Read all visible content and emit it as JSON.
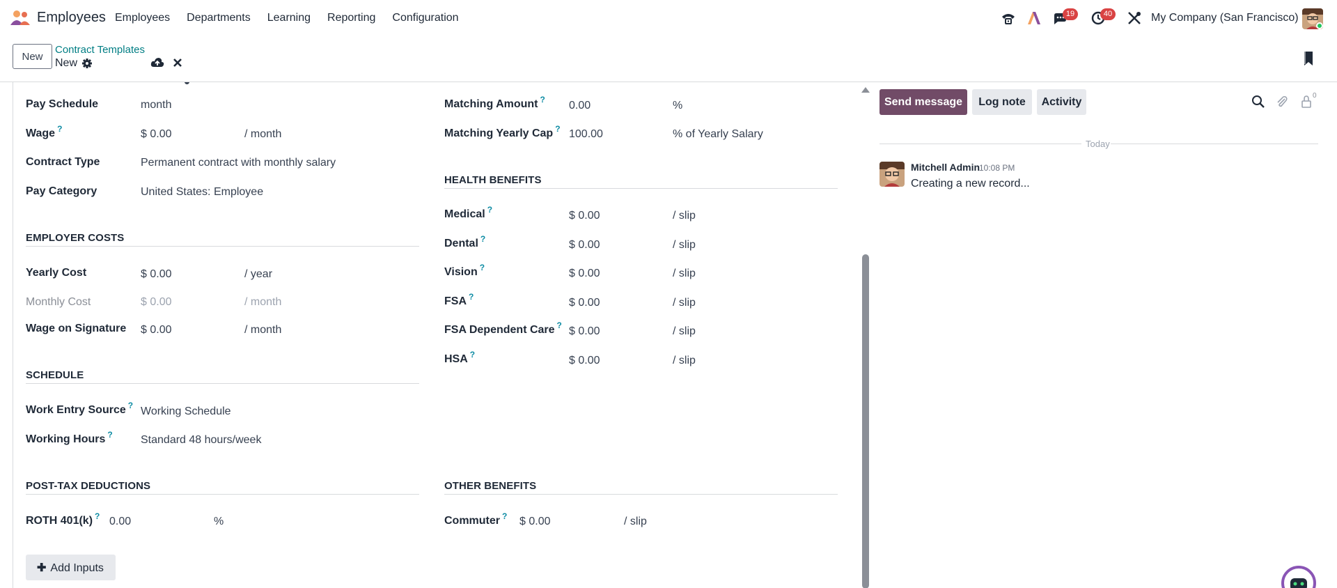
{
  "navbar": {
    "app_name": "Employees",
    "menu": [
      "Employees",
      "Departments",
      "Learning",
      "Reporting",
      "Configuration"
    ],
    "messages_badge": "19",
    "activities_badge": "40",
    "company": "My Company (San Francisco)"
  },
  "control": {
    "new_label": "New",
    "breadcrumb_parent": "Contract Templates",
    "breadcrumb_current": "New"
  },
  "form": {
    "left": {
      "pay_schedule": {
        "label": "Pay Schedule",
        "value": "month"
      },
      "wage": {
        "label": "Wage",
        "value": "$ 0.00",
        "unit": "/ month"
      },
      "contract_type": {
        "label": "Contract Type",
        "value": "Permanent contract with monthly salary"
      },
      "pay_category": {
        "label": "Pay Category",
        "value": "United States: Employee"
      },
      "employer_costs": {
        "title": "EMPLOYER COSTS",
        "yearly_cost": {
          "label": "Yearly Cost",
          "value": "$ 0.00",
          "unit": "/ year"
        },
        "monthly_cost": {
          "label": "Monthly Cost",
          "value": "$ 0.00",
          "unit": "/ month"
        },
        "wage_on_signature": {
          "label": "Wage on Signature",
          "value": "$ 0.00",
          "unit": "/ month"
        }
      },
      "schedule": {
        "title": "SCHEDULE",
        "work_entry_source": {
          "label": "Work Entry Source",
          "value": "Working Schedule"
        },
        "working_hours": {
          "label": "Working Hours",
          "value": "Standard 48 hours/week"
        }
      },
      "post_tax": {
        "title": "POST-TAX DEDUCTIONS",
        "roth": {
          "label": "ROTH 401(k)",
          "value": "0.00",
          "unit": "%"
        }
      },
      "add_inputs_label": "Add Inputs"
    },
    "right": {
      "matching_amount": {
        "label": "Matching Amount",
        "value": "0.00",
        "unit": "%"
      },
      "matching_yearly_cap": {
        "label": "Matching Yearly Cap",
        "value": "100.00",
        "unit": "% of Yearly Salary"
      },
      "health": {
        "title": "HEALTH BENEFITS",
        "rows": [
          {
            "label": "Medical",
            "value": "$ 0.00",
            "unit": "/ slip"
          },
          {
            "label": "Dental",
            "value": "$ 0.00",
            "unit": "/ slip"
          },
          {
            "label": "Vision",
            "value": "$ 0.00",
            "unit": "/ slip"
          },
          {
            "label": "FSA",
            "value": "$ 0.00",
            "unit": "/ slip"
          },
          {
            "label": "FSA Dependent Care",
            "value": "$ 0.00",
            "unit": "/ slip"
          },
          {
            "label": "HSA",
            "value": "$ 0.00",
            "unit": "/ slip"
          }
        ]
      },
      "other": {
        "title": "OTHER BENEFITS",
        "commuter": {
          "label": "Commuter",
          "value": "$ 0.00",
          "unit": "/ slip"
        }
      }
    },
    "help_mark": "?"
  },
  "chatter": {
    "send_message": "Send message",
    "log_note": "Log note",
    "activity": "Activity",
    "followers_count": "0",
    "date_separator": "Today",
    "message": {
      "author": "Mitchell Admin",
      "time": "10:08 PM",
      "body": "Creating a new record..."
    }
  },
  "colors": {
    "primary": "#714b67",
    "link": "#017e84",
    "badge": "#d94343",
    "help": "#0e8ca4"
  }
}
